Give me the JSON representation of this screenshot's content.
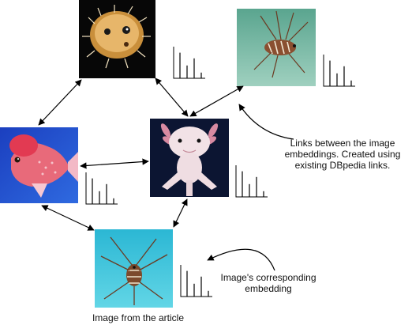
{
  "annotations": {
    "links_note": "Links between the image embeddings. Created using existing DBpedia links.",
    "embedding_note": "Image's corresponding embedding",
    "article_image_label": "Image from the article"
  },
  "images": [
    {
      "id": "pufferfish",
      "subject": "pufferfish on black background",
      "palette": [
        "#0a0a0a",
        "#f2c46a",
        "#b98a3d"
      ]
    },
    {
      "id": "lionfish-top",
      "subject": "lionfish over sandy reef",
      "palette": [
        "#6fb9a6",
        "#8d5a3a",
        "#e8e0c8"
      ]
    },
    {
      "id": "flowerhorn",
      "subject": "flowerhorn cichlid on blue background",
      "palette": [
        "#1f4bd0",
        "#e85a5a",
        "#f7b3c0"
      ]
    },
    {
      "id": "axolotl",
      "subject": "white axolotl on dark navy background",
      "palette": [
        "#0d1530",
        "#f2e2e6",
        "#d89aaa"
      ]
    },
    {
      "id": "lionfish-article",
      "subject": "lionfish in turquoise water",
      "palette": [
        "#3fc6df",
        "#7c4a2c",
        "#e9d9c3"
      ]
    }
  ],
  "embedding_bars": [
    0.9,
    0.45,
    0.7,
    0.2
  ]
}
